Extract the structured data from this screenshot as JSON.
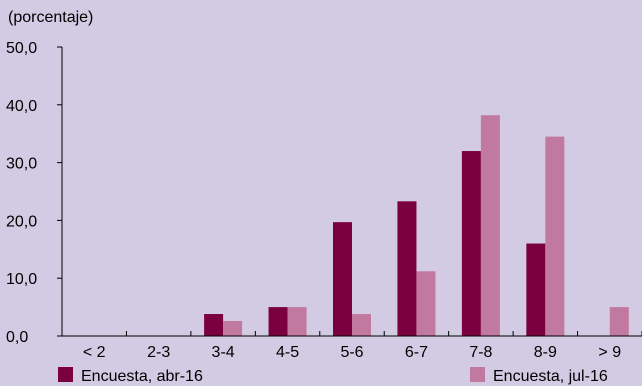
{
  "chart_data": {
    "type": "bar",
    "ylabel": "(porcentaje)",
    "categories": [
      "< 2",
      "2-3",
      "3-4",
      "4-5",
      "5-6",
      "6-7",
      "7-8",
      "8-9",
      "> 9"
    ],
    "series": [
      {
        "name": "Encuesta, abr-16",
        "color": "#7a0040",
        "values": [
          0,
          0,
          3.8,
          5.0,
          19.7,
          23.3,
          32.0,
          16.0,
          0
        ]
      },
      {
        "name": "Encuesta, jul-16",
        "color": "#c2799f",
        "values": [
          0,
          0,
          2.6,
          5.0,
          3.8,
          11.2,
          38.2,
          34.5,
          5.0
        ]
      }
    ],
    "ylim": [
      0,
      50
    ],
    "yticks": [
      "0,0",
      "10,0",
      "20,0",
      "30,0",
      "40,0",
      "50,0"
    ],
    "grid": false,
    "legend": "bottom"
  }
}
